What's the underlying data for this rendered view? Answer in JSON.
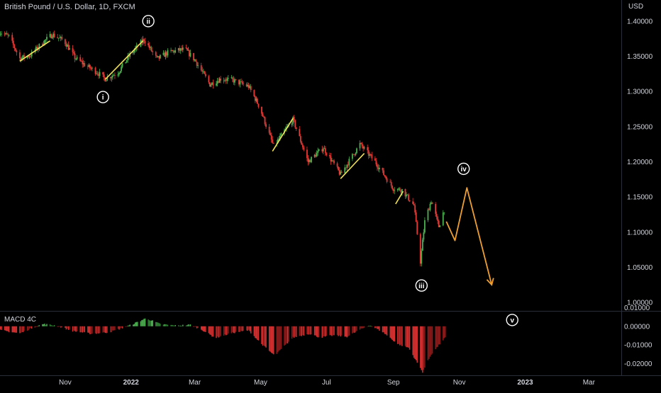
{
  "chart_data": {
    "type": "candlestick",
    "title": "British Pound / U.S. Dollar, 1D, FXCM",
    "currency_label": "USD",
    "price_axis": {
      "range": [
        0.99,
        1.42
      ],
      "ticks": [
        1.4,
        1.35,
        1.3,
        1.25,
        1.2,
        1.15,
        1.1,
        1.05,
        1.0
      ],
      "tick_labels": [
        "1.40000",
        "1.35000",
        "1.30000",
        "1.25000",
        "1.20000",
        "1.15000",
        "1.10000",
        "1.05000",
        "1.00000"
      ]
    },
    "time_axis": {
      "labels": [
        "Nov",
        "2022",
        "Mar",
        "May",
        "Jul",
        "Sep",
        "Nov",
        "2023",
        "Mar"
      ],
      "label_dates": [
        "2021-11-01",
        "2022-01-01",
        "2022-03-01",
        "2022-05-01",
        "2022-07-01",
        "2022-09-01",
        "2022-11-01",
        "2023-01-01",
        "2023-03-01"
      ],
      "range": [
        "2021-09-01",
        "2023-03-31"
      ]
    },
    "price_path": [
      [
        "2021-09-01",
        1.385
      ],
      [
        "2021-09-10",
        1.378
      ],
      [
        "2021-09-20",
        1.347
      ],
      [
        "2021-09-30",
        1.352
      ],
      [
        "2021-10-10",
        1.368
      ],
      [
        "2021-10-20",
        1.381
      ],
      [
        "2021-10-31",
        1.372
      ],
      [
        "2021-11-10",
        1.348
      ],
      [
        "2021-11-20",
        1.337
      ],
      [
        "2021-11-30",
        1.328
      ],
      [
        "2021-12-08",
        1.318
      ],
      [
        "2021-12-20",
        1.327
      ],
      [
        "2021-12-31",
        1.352
      ],
      [
        "2022-01-13",
        1.374
      ],
      [
        "2022-01-25",
        1.346
      ],
      [
        "2022-02-05",
        1.356
      ],
      [
        "2022-02-20",
        1.36
      ],
      [
        "2022-03-01",
        1.345
      ],
      [
        "2022-03-15",
        1.31
      ],
      [
        "2022-03-25",
        1.318
      ],
      [
        "2022-04-05",
        1.316
      ],
      [
        "2022-04-20",
        1.307
      ],
      [
        "2022-04-30",
        1.278
      ],
      [
        "2022-05-13",
        1.222
      ],
      [
        "2022-05-31",
        1.26
      ],
      [
        "2022-06-14",
        1.2
      ],
      [
        "2022-06-28",
        1.22
      ],
      [
        "2022-07-14",
        1.182
      ],
      [
        "2022-08-01",
        1.225
      ],
      [
        "2022-08-15",
        1.2
      ],
      [
        "2022-09-01",
        1.162
      ],
      [
        "2022-09-09",
        1.16
      ],
      [
        "2022-09-20",
        1.138
      ],
      [
        "2022-09-26",
        1.058
      ],
      [
        "2022-09-30",
        1.115
      ],
      [
        "2022-10-06",
        1.145
      ],
      [
        "2022-10-13",
        1.108
      ],
      [
        "2022-10-18",
        1.132
      ]
    ],
    "wave_labels": [
      {
        "text": "i",
        "date": "2021-12-06",
        "price": 1.292
      },
      {
        "text": "ii",
        "date": "2022-01-17",
        "price": 1.4
      },
      {
        "text": "iii",
        "date": "2022-09-27",
        "price": 1.024
      },
      {
        "text": "iv",
        "date": "2022-11-05",
        "price": 1.19
      },
      {
        "text": "v",
        "date": "2022-12-20",
        "price": 0.975
      }
    ],
    "channel_lines": [
      [
        [
          "2021-09-20",
          1.343
        ],
        [
          "2021-10-18",
          1.372
        ]
      ],
      [
        [
          "2021-12-08",
          1.317
        ],
        [
          "2022-01-12",
          1.372
        ]
      ],
      [
        [
          "2022-05-12",
          1.215
        ],
        [
          "2022-05-31",
          1.262
        ]
      ],
      [
        [
          "2022-07-14",
          1.176
        ],
        [
          "2022-08-05",
          1.212
        ]
      ],
      [
        [
          "2022-09-03",
          1.14
        ],
        [
          "2022-09-10",
          1.158
        ]
      ]
    ],
    "projection_path": [
      [
        "2022-10-20",
        1.115
      ],
      [
        "2022-10-28",
        1.088
      ],
      [
        "2022-11-08",
        1.163
      ],
      [
        "2022-12-01",
        1.025
      ]
    ],
    "indicator": {
      "name": "MACD 4C",
      "axis_ticks": [
        0.01,
        0.0,
        -0.01,
        -0.02
      ],
      "axis_labels": [
        "0.01000",
        "0.00000",
        "-0.01000",
        "-0.02000"
      ],
      "range": [
        -0.0255,
        0.0075
      ],
      "profile": [
        [
          "2021-09-01",
          -0.002
        ],
        [
          "2021-09-20",
          -0.0038
        ],
        [
          "2021-10-03",
          -0.0005
        ],
        [
          "2021-10-12",
          0.0012
        ],
        [
          "2021-10-25",
          0.0002
        ],
        [
          "2021-11-08",
          -0.0025
        ],
        [
          "2021-11-25",
          -0.004
        ],
        [
          "2021-12-12",
          -0.0032
        ],
        [
          "2021-12-31",
          0.0005
        ],
        [
          "2022-01-15",
          0.0043
        ],
        [
          "2022-01-28",
          0.0012
        ],
        [
          "2022-02-12",
          0.0003
        ],
        [
          "2022-02-25",
          0.0008
        ],
        [
          "2022-03-08",
          -0.002
        ],
        [
          "2022-03-20",
          -0.0062
        ],
        [
          "2022-04-05",
          -0.0035
        ],
        [
          "2022-04-20",
          -0.0022
        ],
        [
          "2022-05-01",
          -0.009
        ],
        [
          "2022-05-14",
          -0.0158
        ],
        [
          "2022-05-31",
          -0.006
        ],
        [
          "2022-06-15",
          -0.004
        ],
        [
          "2022-06-25",
          -0.006
        ],
        [
          "2022-07-08",
          -0.0048
        ],
        [
          "2022-07-20",
          -0.0056
        ],
        [
          "2022-08-01",
          -0.0018
        ],
        [
          "2022-08-10",
          0.0006
        ],
        [
          "2022-08-22",
          -0.003
        ],
        [
          "2022-09-05",
          -0.0095
        ],
        [
          "2022-09-15",
          -0.0115
        ],
        [
          "2022-09-28",
          -0.0245
        ],
        [
          "2022-10-06",
          -0.015
        ],
        [
          "2022-10-19",
          -0.006
        ]
      ]
    },
    "colors": {
      "background": "#000000",
      "up_candle": "#4caf50",
      "down_candle": "#e53935",
      "channel_line": "#f0e05a",
      "projection": "#f0a030",
      "macd_pos": "#4caf50",
      "macd_pos_weak": "#2e7d32",
      "macd_neg": "#d32f2f",
      "macd_neg_weak": "#8b1a1a",
      "text": "#d1d4dc",
      "divider": "#2a2e39"
    }
  }
}
